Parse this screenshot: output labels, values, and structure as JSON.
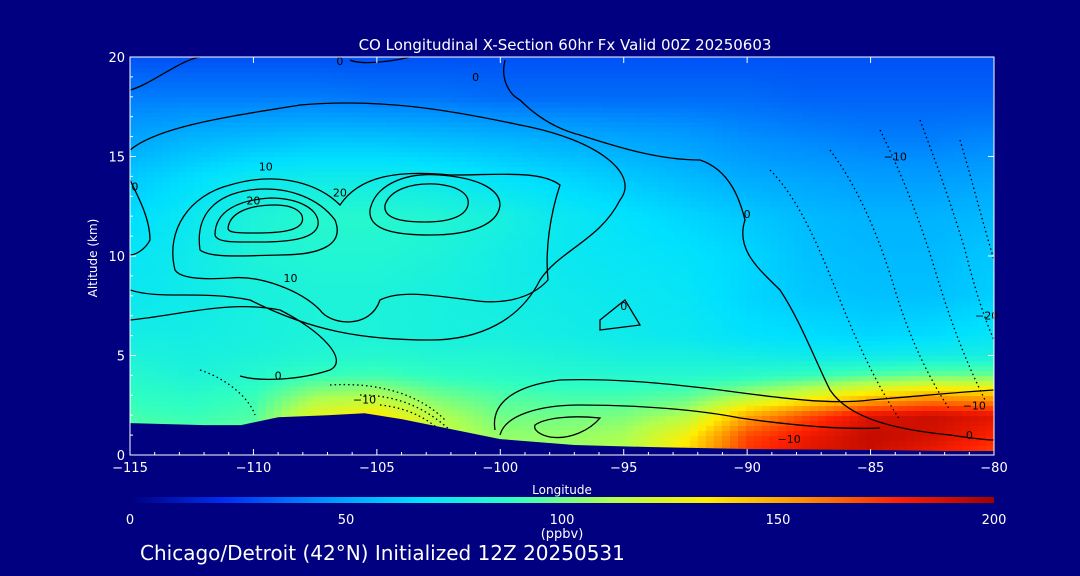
{
  "chart_data": {
    "type": "heatmap",
    "title": "CO Longitudinal X-Section 60hr  Fx Valid 00Z 20250603",
    "xlabel": "Longitude",
    "ylabel": "Altitude (km)",
    "xlim": [
      -115,
      -80
    ],
    "ylim": [
      0,
      20
    ],
    "x_ticks": [
      -115,
      -110,
      -105,
      -100,
      -95,
      -90,
      -85,
      -80
    ],
    "x_tick_labels": [
      "−115",
      "−110",
      "−105",
      "−100",
      "−95",
      "−90",
      "−85",
      "−80"
    ],
    "y_ticks": [
      0,
      5,
      10,
      15,
      20
    ],
    "y_tick_labels": [
      "0",
      "5",
      "10",
      "15",
      "20"
    ],
    "colorbar": {
      "min": 0,
      "max": 200,
      "ticks": [
        0,
        50,
        100,
        150,
        200
      ],
      "tick_labels": [
        "0",
        "50",
        "100",
        "150",
        "200"
      ],
      "unit_label": "(ppbv)",
      "colors": [
        "#000080",
        "#0030f0",
        "#0090ff",
        "#00e0ff",
        "#30ffc0",
        "#b0ff50",
        "#ffee00",
        "#ff9000",
        "#ff2000",
        "#a00000"
      ]
    },
    "co_field": {
      "x": [
        -115,
        -112.5,
        -110,
        -107.5,
        -105,
        -102.5,
        -100,
        -97.5,
        -95,
        -92.5,
        -90,
        -87.5,
        -85,
        -82.5,
        -80
      ],
      "y": [
        0,
        1,
        2,
        3,
        4,
        5,
        6,
        8,
        10,
        12,
        14,
        16,
        18,
        20
      ],
      "values": [
        [
          100,
          98,
          104,
          140,
          150,
          120,
          108,
          108,
          112,
          140,
          175,
          185,
          190,
          180,
          170
        ],
        [
          98,
          96,
          100,
          135,
          150,
          118,
          106,
          106,
          110,
          130,
          170,
          182,
          192,
          188,
          178
        ],
        [
          92,
          90,
          94,
          125,
          135,
          112,
          100,
          100,
          102,
          112,
          150,
          170,
          186,
          190,
          185
        ],
        [
          88,
          86,
          90,
          108,
          112,
          100,
          94,
          92,
          92,
          96,
          110,
          125,
          140,
          150,
          148
        ],
        [
          84,
          80,
          84,
          90,
          92,
          88,
          86,
          84,
          84,
          84,
          86,
          90,
          96,
          100,
          100
        ],
        [
          80,
          78,
          80,
          82,
          84,
          82,
          82,
          80,
          78,
          78,
          76,
          74,
          74,
          76,
          78
        ],
        [
          76,
          76,
          78,
          80,
          80,
          78,
          78,
          76,
          74,
          72,
          68,
          66,
          64,
          66,
          70
        ],
        [
          72,
          74,
          78,
          80,
          80,
          78,
          76,
          74,
          72,
          70,
          64,
          60,
          58,
          58,
          62
        ],
        [
          70,
          74,
          80,
          82,
          82,
          80,
          76,
          72,
          70,
          68,
          64,
          58,
          56,
          56,
          60
        ],
        [
          66,
          72,
          80,
          84,
          84,
          82,
          78,
          72,
          68,
          64,
          60,
          56,
          54,
          54,
          56
        ],
        [
          60,
          66,
          72,
          74,
          74,
          72,
          68,
          64,
          60,
          56,
          52,
          50,
          48,
          48,
          50
        ],
        [
          50,
          54,
          56,
          58,
          58,
          56,
          54,
          52,
          50,
          48,
          44,
          42,
          40,
          40,
          42
        ],
        [
          40,
          40,
          40,
          40,
          38,
          38,
          36,
          36,
          36,
          36,
          36,
          34,
          34,
          34,
          34
        ],
        [
          30,
          30,
          30,
          30,
          30,
          30,
          30,
          30,
          30,
          30,
          30,
          30,
          30,
          30,
          30
        ]
      ]
    },
    "terrain": {
      "x": [
        -115,
        -112,
        -110.5,
        -109,
        -107,
        -105.5,
        -104,
        -102,
        -100,
        -97,
        -94,
        -90,
        -85,
        -82,
        -80
      ],
      "elevation_km": [
        1.6,
        1.5,
        1.5,
        1.9,
        2.0,
        2.1,
        1.8,
        1.3,
        0.8,
        0.5,
        0.4,
        0.3,
        0.25,
        0.2,
        0.2
      ]
    },
    "contour_labels": [
      {
        "text": "0",
        "lon": -106.5,
        "alt": 19.8
      },
      {
        "text": "0",
        "lon": -101,
        "alt": 19.0
      },
      {
        "text": "0",
        "lon": -114.8,
        "alt": 13.5
      },
      {
        "text": "10",
        "lon": -109.5,
        "alt": 14.5
      },
      {
        "text": "20",
        "lon": -110,
        "alt": 12.8
      },
      {
        "text": "20",
        "lon": -106.5,
        "alt": 13.2
      },
      {
        "text": "10",
        "lon": -108.5,
        "alt": 8.9
      },
      {
        "text": "0",
        "lon": -90,
        "alt": 12.1
      },
      {
        "text": "0",
        "lon": -95,
        "alt": 7.5
      },
      {
        "text": "−10",
        "lon": -84,
        "alt": 15
      },
      {
        "text": "−20",
        "lon": -80.3,
        "alt": 7
      },
      {
        "text": "0",
        "lon": -109,
        "alt": 4
      },
      {
        "text": "−10",
        "lon": -105.5,
        "alt": 2.8
      },
      {
        "text": "−10",
        "lon": -80.8,
        "alt": 2.5
      },
      {
        "text": "0",
        "lon": -81,
        "alt": 1
      },
      {
        "text": "−10",
        "lon": -88.3,
        "alt": 0.8
      }
    ]
  },
  "footer_text": "Chicago/Detroit (42°N) Initialized 12Z 20250531"
}
